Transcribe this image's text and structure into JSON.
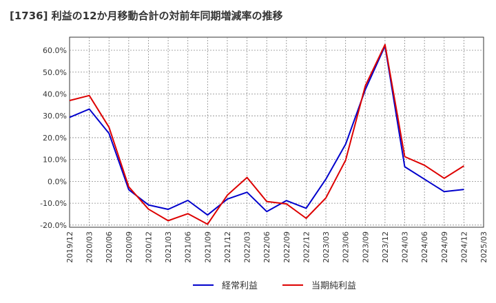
{
  "chart_data": {
    "type": "line",
    "title": "[1736]  利益の12か月移動合計の対前年同期増減率の推移",
    "xlabel": "",
    "ylabel": "",
    "ylim": [
      -21,
      66
    ],
    "yticks": [
      -20,
      -10,
      0,
      10,
      20,
      30,
      40,
      50,
      60
    ],
    "ytick_labels": [
      "-20.0%",
      "-10.0%",
      "0.0%",
      "10.0%",
      "20.0%",
      "30.0%",
      "40.0%",
      "50.0%",
      "60.0%"
    ],
    "x": [
      "2019/12",
      "2020/03",
      "2020/06",
      "2020/09",
      "2020/12",
      "2021/03",
      "2021/06",
      "2021/09",
      "2021/12",
      "2022/03",
      "2022/06",
      "2022/09",
      "2022/12",
      "2023/03",
      "2023/06",
      "2023/09",
      "2023/12",
      "2024/03",
      "2024/06",
      "2024/09",
      "2024/12",
      "2025/03"
    ],
    "grid": true,
    "legend_position": "bottom-center",
    "series": [
      {
        "name": "経常利益",
        "color": "#0000cc",
        "values": [
          29.3,
          33.1,
          22.0,
          -3.8,
          -10.8,
          -12.8,
          -8.7,
          -15.4,
          -8.1,
          -5.0,
          -13.8,
          -8.8,
          -12.3,
          1.0,
          17.0,
          42.0,
          62.0,
          6.7,
          1.0,
          -4.7,
          -3.7,
          null
        ]
      },
      {
        "name": "当期純利益",
        "color": "#dd0000",
        "values": [
          37.0,
          39.3,
          24.8,
          -2.5,
          -12.7,
          -18.0,
          -14.8,
          -19.6,
          -6.3,
          1.8,
          -9.2,
          -10.3,
          -16.9,
          -7.6,
          9.7,
          43.7,
          62.6,
          11.3,
          7.4,
          1.4,
          7.1,
          null
        ]
      }
    ]
  }
}
